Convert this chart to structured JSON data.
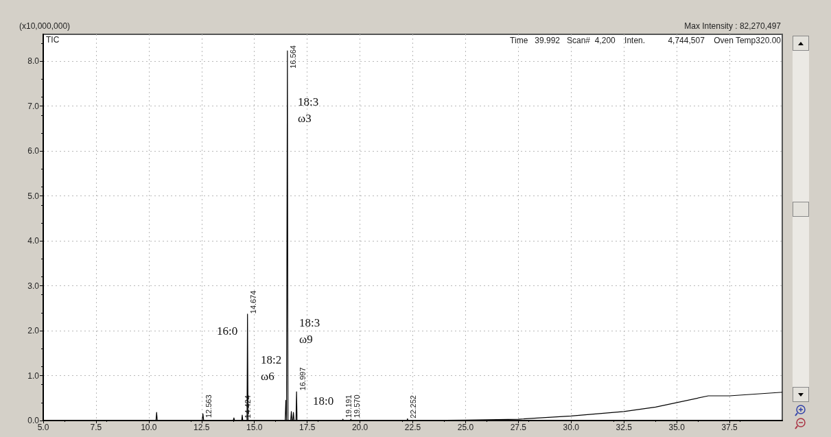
{
  "chart_data": {
    "type": "line",
    "ylabel": "(x10,000,000)",
    "series": [
      {
        "name": "TIC",
        "color": "#000000",
        "x": [
          5.0,
          8.4,
          10.34,
          10.37,
          10.4,
          12.53,
          12.563,
          12.6,
          14.0,
          14.03,
          14.06,
          14.4,
          14.424,
          14.45,
          14.65,
          14.674,
          14.7,
          16.46,
          16.49,
          16.52,
          16.54,
          16.564,
          16.59,
          16.72,
          16.75,
          16.78,
          16.82,
          16.85,
          16.88,
          16.97,
          16.997,
          17.02,
          19.17,
          19.191,
          19.21,
          19.55,
          19.57,
          19.59,
          22.23,
          22.252,
          22.27,
          25.0,
          27.5,
          30.0,
          32.5,
          34.0,
          35.0,
          36.5,
          37.5,
          40.0
        ],
        "values": [
          0.0,
          0.0,
          0.0,
          0.18,
          0.0,
          0.0,
          0.15,
          0.0,
          0.0,
          0.06,
          0.0,
          0.0,
          0.12,
          0.0,
          0.0,
          2.37,
          0.0,
          0.0,
          0.45,
          0.0,
          0.0,
          8.23,
          0.0,
          0.0,
          0.2,
          0.0,
          0.0,
          0.18,
          0.0,
          0.0,
          0.64,
          0.0,
          0.0,
          0.03,
          0.0,
          0.0,
          0.03,
          0.0,
          0.0,
          0.04,
          0.0,
          0.01,
          0.03,
          0.1,
          0.2,
          0.3,
          0.4,
          0.55,
          0.55,
          0.63
        ]
      }
    ],
    "xlim": [
      5,
      40
    ],
    "xticks": [
      {
        "value": 5,
        "label": "5.0"
      },
      {
        "value": 7.5,
        "label": "7.5"
      },
      {
        "value": 10,
        "label": "10.0"
      },
      {
        "value": 12.5,
        "label": "12.5"
      },
      {
        "value": 15,
        "label": "15.0"
      },
      {
        "value": 17.5,
        "label": "17.5"
      },
      {
        "value": 20,
        "label": "20.0"
      },
      {
        "value": 22.5,
        "label": "22.5"
      },
      {
        "value": 25,
        "label": "25.0"
      },
      {
        "value": 27.5,
        "label": "27.5"
      },
      {
        "value": 30,
        "label": "30.0"
      },
      {
        "value": 32.5,
        "label": "32.5"
      },
      {
        "value": 35,
        "label": "35.0"
      },
      {
        "value": 37.5,
        "label": "37.5"
      }
    ],
    "ylim": [
      0,
      8.6
    ],
    "yticks": [
      {
        "value": 0,
        "label": "0.0"
      },
      {
        "value": 1,
        "label": "1.0"
      },
      {
        "value": 2,
        "label": "2.0"
      },
      {
        "value": 3,
        "label": "3.0"
      },
      {
        "value": 4,
        "label": "4.0"
      },
      {
        "value": 5,
        "label": "5.0"
      },
      {
        "value": 6,
        "label": "6.0"
      },
      {
        "value": 7,
        "label": "7.0"
      },
      {
        "value": 8,
        "label": "8.0"
      }
    ],
    "grid": true,
    "marker": "none",
    "line_style": "solid",
    "annotations": [
      "Max Intensity : 82,270,497",
      "Time   39.992   Scan#  4,200    Inten.          4,744,507    Oven Temp320.00",
      {
        "text": "12.563",
        "x": 12.563,
        "y": 0.06
      },
      {
        "text": "14.424",
        "x": 14.424,
        "y": 0.05
      },
      {
        "text": "14.674",
        "x": 14.674,
        "y": 2.38
      },
      {
        "text": "16.564",
        "x": 16.564,
        "y": 7.84
      },
      {
        "text": "16.997",
        "x": 16.997,
        "y": 0.67
      },
      {
        "text": "19.191",
        "x": 19.191,
        "y": 0.06
      },
      {
        "text": "19.570",
        "x": 19.57,
        "y": 0.06
      },
      {
        "text": "22.252",
        "x": 22.252,
        "y": 0.05
      },
      "16:0",
      "18:3\nω3",
      "18:2\nω6",
      "18:3\nω9",
      "18:0"
    ]
  }
}
